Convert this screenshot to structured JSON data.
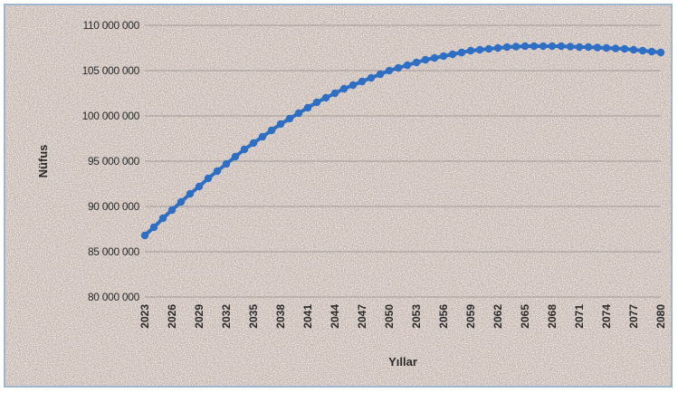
{
  "chart_data": {
    "type": "line",
    "title": "",
    "xlabel": "Yıllar",
    "ylabel": "Nüfus",
    "ylim": [
      80000000,
      110000000
    ],
    "yticks": [
      80000000,
      85000000,
      90000000,
      95000000,
      100000000,
      105000000,
      110000000
    ],
    "ytick_labels": [
      "80 000 000",
      "85 000 000",
      "90 000 000",
      "95 000 000",
      "100 000 000",
      "105 000 000",
      "110 000 000"
    ],
    "xticks": [
      "2023",
      "2026",
      "2029",
      "2032",
      "2035",
      "2038",
      "2041",
      "2044",
      "2047",
      "2050",
      "2053",
      "2056",
      "2059",
      "2062",
      "2065",
      "2068",
      "2071",
      "2074",
      "2077",
      "2080"
    ],
    "grid": true,
    "legend": "none",
    "series_color": "#2e6fc4",
    "series": [
      {
        "x": [
          2023,
          2024,
          2025,
          2026,
          2027,
          2028,
          2029,
          2030,
          2031,
          2032,
          2033,
          2034,
          2035,
          2036,
          2037,
          2038,
          2039,
          2040,
          2041,
          2042,
          2043,
          2044,
          2045,
          2046,
          2047,
          2048,
          2049,
          2050,
          2051,
          2052,
          2053,
          2054,
          2055,
          2056,
          2057,
          2058,
          2059,
          2060,
          2061,
          2062,
          2063,
          2064,
          2065,
          2066,
          2067,
          2068,
          2069,
          2070,
          2071,
          2072,
          2073,
          2074,
          2075,
          2076,
          2077,
          2078,
          2079,
          2080
        ],
        "values": [
          86800000,
          87700000,
          88700000,
          89600000,
          90500000,
          91400000,
          92200000,
          93100000,
          93900000,
          94700000,
          95500000,
          96300000,
          97000000,
          97700000,
          98400000,
          99100000,
          99700000,
          100300000,
          100900000,
          101500000,
          102000000,
          102500000,
          103000000,
          103400000,
          103800000,
          104200000,
          104600000,
          105000000,
          105300000,
          105600000,
          105900000,
          106200000,
          106400000,
          106600000,
          106800000,
          107000000,
          107200000,
          107300000,
          107400000,
          107500000,
          107600000,
          107650000,
          107700000,
          107700000,
          107700000,
          107700000,
          107700000,
          107650000,
          107600000,
          107600000,
          107550000,
          107500000,
          107450000,
          107400000,
          107300000,
          107200000,
          107100000,
          107000000
        ]
      }
    ]
  }
}
